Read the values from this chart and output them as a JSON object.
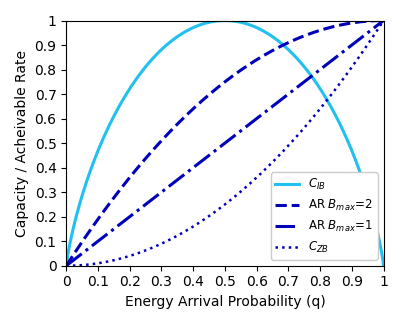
{
  "xlabel": "Energy Arrival Probability (q)",
  "ylabel": "Capacity / Acheivable Rate",
  "xlim": [
    0,
    1
  ],
  "ylim": [
    0,
    1
  ],
  "cib_color": "#22C0EE",
  "ar_color": "#0000BB",
  "n_points": 2000,
  "lw_cib": 2.2,
  "lw_ar": 2.2,
  "lw_czb": 1.8,
  "label_cib": "$C_{IB}$",
  "label_ar2": "AR $B_{max}$=2",
  "label_ar1": "AR $B_{max}$=1",
  "label_czb": "$C_{ZB}$",
  "xticks": [
    0,
    0.1,
    0.2,
    0.3,
    0.4,
    0.5,
    0.6,
    0.7,
    0.8,
    0.9,
    1.0
  ],
  "yticks": [
    0,
    0.1,
    0.2,
    0.3,
    0.4,
    0.5,
    0.6,
    0.7,
    0.8,
    0.9,
    1.0
  ]
}
